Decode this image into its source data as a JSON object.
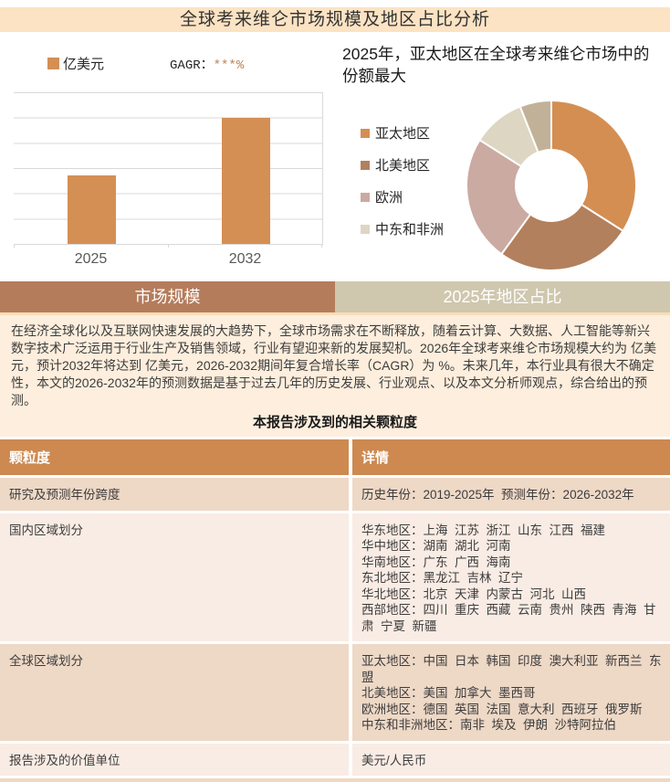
{
  "page": {
    "title": "全球考来维仑市场规模及地区占比分析"
  },
  "tabs": [
    {
      "label": "市场规模",
      "active": true
    },
    {
      "label": "2025年地区占比",
      "active": false
    }
  ],
  "chart_data": [
    {
      "type": "bar",
      "legend_label": "亿美元",
      "cagr_label": "GAGR：",
      "cagr_value": "***%",
      "categories": [
        "2025",
        "2032"
      ],
      "values": [
        2.7,
        5.0
      ],
      "ylim": [
        0,
        6
      ],
      "gridlines": 6,
      "ylabel": "亿美元",
      "bar_color": "#d48f55",
      "note": "y-axis has no tick labels; values estimated from gridlines (2032 bar reaches 5 of 6 intervals, 2025 bar about 2.7 of 6)"
    },
    {
      "type": "donut",
      "title": "2025年，亚太地区在全球考来维仑市场中的份额最大",
      "legend_position": "left",
      "slices": [
        {
          "label": "亚太地区",
          "value": 34,
          "color": "#d48e52"
        },
        {
          "label": "北美地区",
          "value": 26,
          "color": "#b2805d"
        },
        {
          "label": "欧洲",
          "value": 24,
          "color": "#cbaaa1"
        },
        {
          "label": "中东和非洲",
          "value": 10,
          "color": "#ddd6c2"
        },
        {
          "label": "",
          "value": 6,
          "color": "#c2b199"
        }
      ]
    }
  ],
  "summary": {
    "paragraph": "在经济全球化以及互联网快速发展的大趋势下，全球市场需求在不断释放，随着云计算、大数据、人工智能等新兴数字技术广泛运用于行业生产及销售领域，行业有望迎来新的发展契机。2026年全球考来维仑市场规模大约为 亿美元，预计2032年将达到 亿美元，2026-2032期间年复合增长率（CAGR）为 %。未来几年，本行业具有很大不确定性，本文的2026-2032年的预测数据是基于过去几年的历史发展、行业观点、以及本文分析师观点，综合给出的预测。",
    "table_title": "本报告涉及到的相关颗粒度"
  },
  "table": {
    "headers": [
      "颗粒度",
      "详情"
    ],
    "rows": [
      {
        "label": "研究及预测年份跨度",
        "details": [
          "历史年份：2019-2025年  预测年份：2026-2032年"
        ]
      },
      {
        "label": "国内区域划分",
        "details": [
          "华东地区：上海  江苏  浙江  山东  江西  福建",
          "华中地区：湖南  湖北  河南",
          "华南地区：广东  广西  海南",
          "东北地区：黑龙江  吉林  辽宁",
          "华北地区：北京  天津  内蒙古  河北  山西",
          "西部地区：四川  重庆  西藏  云南  贵州  陕西  青海  甘肃  宁夏  新疆"
        ]
      },
      {
        "label": "全球区域划分",
        "details": [
          "亚太地区：中国  日本  韩国  印度  澳大利亚  新西兰  东盟",
          "北美地区：美国  加拿大  墨西哥",
          "欧洲地区：德国  英国  法国  意大利  西班牙  俄罗斯",
          "中东和非洲地区：南非  埃及  伊朗  沙特阿拉伯"
        ]
      },
      {
        "label": "报告涉及的价值单位",
        "details": [
          "美元/人民币"
        ]
      }
    ]
  },
  "colors": {
    "title_band": "#fbe3c3",
    "summary_bg": "#fdeedd",
    "tab_active": "#b57c5b",
    "tab_inactive": "#cfc7ae",
    "table_header": "#cd8950",
    "row_pink": "#eed8c6",
    "row_light": "#f9ece4",
    "bar": "#d48f55",
    "gridline": "#d9d9d9"
  }
}
